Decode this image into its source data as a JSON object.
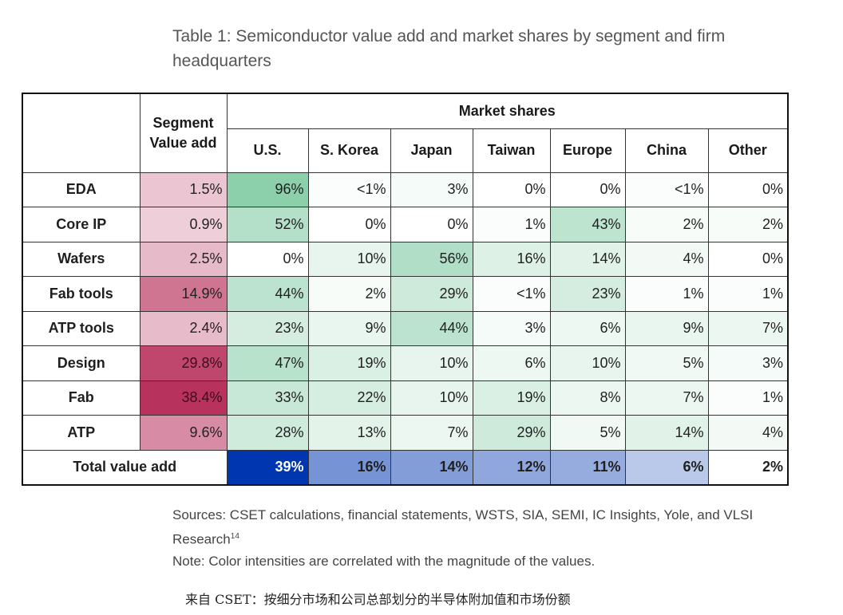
{
  "title": "Table 1: Semiconductor value add and market shares by segment and firm headquarters",
  "header": {
    "segment": "Segment Value add",
    "market_shares": "Market shares",
    "regions": [
      "U.S.",
      "S. Korea",
      "Japan",
      "Taiwan",
      "Europe",
      "China",
      "Other"
    ]
  },
  "rows": [
    {
      "label": "EDA",
      "value_add": "1.5%",
      "shares": [
        "96%",
        "<1%",
        "3%",
        "0%",
        "0%",
        "<1%",
        "0%"
      ]
    },
    {
      "label": "Core IP",
      "value_add": "0.9%",
      "shares": [
        "52%",
        "0%",
        "0%",
        "1%",
        "43%",
        "2%",
        "2%"
      ]
    },
    {
      "label": "Wafers",
      "value_add": "2.5%",
      "shares": [
        "0%",
        "10%",
        "56%",
        "16%",
        "14%",
        "4%",
        "0%"
      ]
    },
    {
      "label": "Fab tools",
      "value_add": "14.9%",
      "shares": [
        "44%",
        "2%",
        "29%",
        "<1%",
        "23%",
        "1%",
        "1%"
      ]
    },
    {
      "label": "ATP tools",
      "value_add": "2.4%",
      "shares": [
        "23%",
        "9%",
        "44%",
        "3%",
        "6%",
        "9%",
        "7%"
      ]
    },
    {
      "label": "Design",
      "value_add": "29.8%",
      "shares": [
        "47%",
        "19%",
        "10%",
        "6%",
        "10%",
        "5%",
        "3%"
      ]
    },
    {
      "label": "Fab",
      "value_add": "38.4%",
      "shares": [
        "33%",
        "22%",
        "10%",
        "19%",
        "8%",
        "7%",
        "1%"
      ]
    },
    {
      "label": "ATP",
      "value_add": "9.6%",
      "shares": [
        "28%",
        "13%",
        "7%",
        "29%",
        "5%",
        "14%",
        "4%"
      ]
    }
  ],
  "total": {
    "label": "Total value add",
    "shares": [
      "39%",
      "16%",
      "14%",
      "12%",
      "11%",
      "6%",
      "2%"
    ]
  },
  "sources": "Sources: CSET calculations, financial statements, WSTS, SIA, SEMI, IC Insights, Yole, and VLSI Research",
  "sources_ref": "14",
  "note": "Note: Color intensities are correlated with the magnitude of the values.",
  "caption": "来自 CSET：按细分市场和公司总部划分的半导体附加值和市场份额",
  "colors": {
    "value_add_max": "#b8325e",
    "share_max": "#7fcaa2",
    "total_max": "#0036b0"
  }
}
